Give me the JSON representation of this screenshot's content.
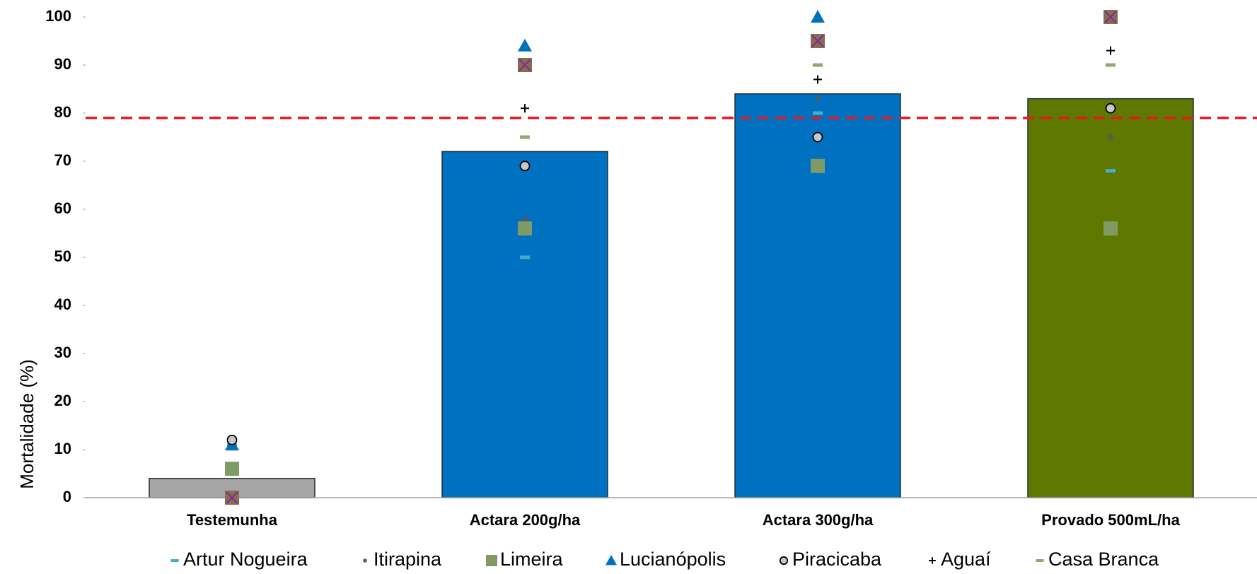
{
  "chart_data": {
    "type": "bar",
    "y_label": "Mortalidade (%)",
    "categories": [
      "Testemunha",
      "Actara 200g/ha",
      "Actara 300g/ha",
      "Provado 500mL/ha"
    ],
    "values": [
      4,
      72,
      84,
      83
    ],
    "colors": [
      "#a6a6a6",
      "#0070c0",
      "#0070c0",
      "#5f7800"
    ],
    "reference_line": 79,
    "reference_color": "#e8191c",
    "ylim": [
      0,
      100
    ],
    "yticks": [
      0,
      10,
      20,
      30,
      40,
      50,
      60,
      70,
      80,
      90,
      100
    ],
    "series": [
      {
        "name": "Artur Nogueira",
        "color": "#4bacc6",
        "marker": "dash",
        "values": [
          11,
          50,
          80,
          68
        ]
      },
      {
        "name": "Itirapina",
        "color": "#595959",
        "marker": "dot",
        "values": [
          0,
          58,
          83,
          75
        ]
      },
      {
        "name": "Limeira",
        "color": "#7f9a65",
        "marker": "square",
        "values": [
          6,
          56,
          69,
          56
        ]
      },
      {
        "name": "Lucianópolis",
        "color": "#0070c0",
        "marker": "triangle",
        "values": [
          11,
          94,
          100,
          100
        ]
      },
      {
        "name": "Piracicaba",
        "color": "#c8c8c8",
        "marker": "circle",
        "values": [
          12,
          69,
          75,
          81
        ]
      },
      {
        "name": "Aguaí",
        "color": "#000000",
        "marker": "plus",
        "values": [
          0,
          81,
          87,
          93
        ]
      },
      {
        "name": "Casa Branca",
        "color": "#8faa6e",
        "marker": "dash",
        "values": [
          0,
          75,
          90,
          90
        ]
      },
      {
        "color": "#8b6a4f",
        "marker": "square-x",
        "values": [
          0,
          90,
          95,
          100
        ]
      }
    ]
  }
}
